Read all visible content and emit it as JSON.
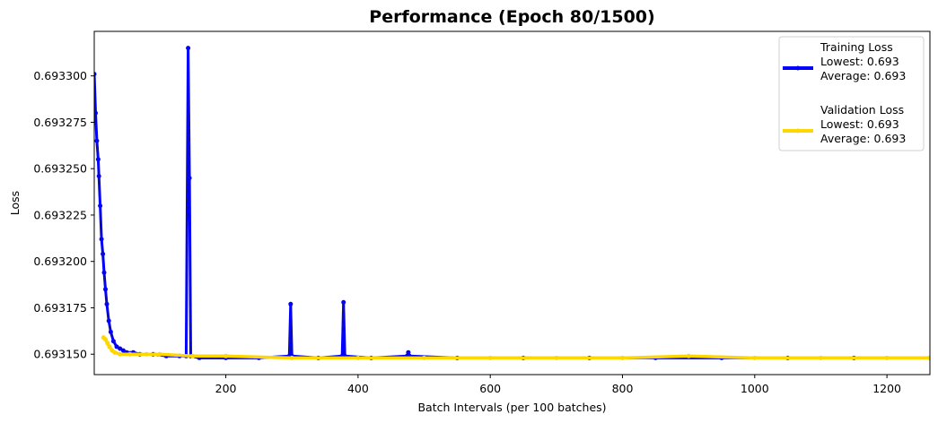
{
  "chart_data": {
    "type": "line",
    "title": "Performance (Epoch 80/1500)",
    "xlabel": "Batch Intervals (per 100 batches)",
    "ylabel": "Loss",
    "xlim": [
      1,
      1265
    ],
    "ylim": [
      0.693139,
      0.693324
    ],
    "x_ticks": [
      200,
      400,
      600,
      800,
      1000,
      1200
    ],
    "x_tick_labels": [
      "200",
      "400",
      "600",
      "800",
      "1000",
      "1200"
    ],
    "y_ticks": [
      0.69315,
      0.693175,
      0.6932,
      0.693225,
      0.69325,
      0.693275,
      0.6933
    ],
    "y_tick_labels": [
      "0.693150",
      "0.693175",
      "0.693200",
      "0.693225",
      "0.693250",
      "0.693275",
      "0.693300"
    ],
    "grid": false,
    "legend_position": "top-right",
    "legend": [
      {
        "series": "Training Loss",
        "lines": [
          "Training Loss",
          "Lowest: 0.693",
          "Average: 0.693"
        ]
      },
      {
        "series": "Validation Loss",
        "lines": [
          "Validation Loss",
          "Lowest: 0.693",
          "Average: 0.693"
        ]
      }
    ],
    "series": [
      {
        "name": "Training Loss",
        "color": "#0000ff",
        "marker": "circle",
        "points": [
          [
            1,
            0.693301
          ],
          [
            3,
            0.69328
          ],
          [
            5,
            0.693265
          ],
          [
            7,
            0.693255
          ],
          [
            8,
            0.693246
          ],
          [
            10,
            0.69323
          ],
          [
            12,
            0.693212
          ],
          [
            14,
            0.693204
          ],
          [
            16,
            0.693194
          ],
          [
            18,
            0.693185
          ],
          [
            20,
            0.693177
          ],
          [
            23,
            0.693168
          ],
          [
            26,
            0.693162
          ],
          [
            30,
            0.693157
          ],
          [
            35,
            0.693154
          ],
          [
            40,
            0.693153
          ],
          [
            45,
            0.693152
          ],
          [
            50,
            0.693151
          ],
          [
            60,
            0.693151
          ],
          [
            70,
            0.69315
          ],
          [
            90,
            0.69315
          ],
          [
            110,
            0.693149
          ],
          [
            130,
            0.693149
          ],
          [
            140,
            0.693149
          ],
          [
            143,
            0.693315
          ],
          [
            145,
            0.693245
          ],
          [
            147,
            0.693149
          ],
          [
            160,
            0.693148
          ],
          [
            200,
            0.693148
          ],
          [
            250,
            0.693148
          ],
          [
            296,
            0.693149
          ],
          [
            298,
            0.693177
          ],
          [
            300,
            0.693149
          ],
          [
            340,
            0.693148
          ],
          [
            376,
            0.693149
          ],
          [
            378,
            0.693178
          ],
          [
            380,
            0.693149
          ],
          [
            420,
            0.693148
          ],
          [
            474,
            0.693149
          ],
          [
            476,
            0.693151
          ],
          [
            478,
            0.693149
          ],
          [
            550,
            0.693148
          ],
          [
            650,
            0.693148
          ],
          [
            750,
            0.693148
          ],
          [
            850,
            0.693148
          ],
          [
            950,
            0.693148
          ],
          [
            1050,
            0.693148
          ],
          [
            1150,
            0.693148
          ],
          [
            1265,
            0.693148
          ]
        ]
      },
      {
        "name": "Validation Loss",
        "color": "#ffd700",
        "marker": "circle",
        "points": [
          [
            15,
            0.693159
          ],
          [
            18,
            0.693158
          ],
          [
            21,
            0.693156
          ],
          [
            24,
            0.693154
          ],
          [
            28,
            0.693152
          ],
          [
            32,
            0.693151
          ],
          [
            40,
            0.69315
          ],
          [
            55,
            0.69315
          ],
          [
            80,
            0.69315
          ],
          [
            100,
            0.69315
          ],
          [
            150,
            0.693149
          ],
          [
            200,
            0.693149
          ],
          [
            300,
            0.693148
          ],
          [
            400,
            0.693148
          ],
          [
            500,
            0.693148
          ],
          [
            600,
            0.693148
          ],
          [
            700,
            0.693148
          ],
          [
            800,
            0.693148
          ],
          [
            900,
            0.693149
          ],
          [
            1000,
            0.693148
          ],
          [
            1100,
            0.693148
          ],
          [
            1200,
            0.693148
          ],
          [
            1265,
            0.693148
          ]
        ]
      }
    ]
  }
}
